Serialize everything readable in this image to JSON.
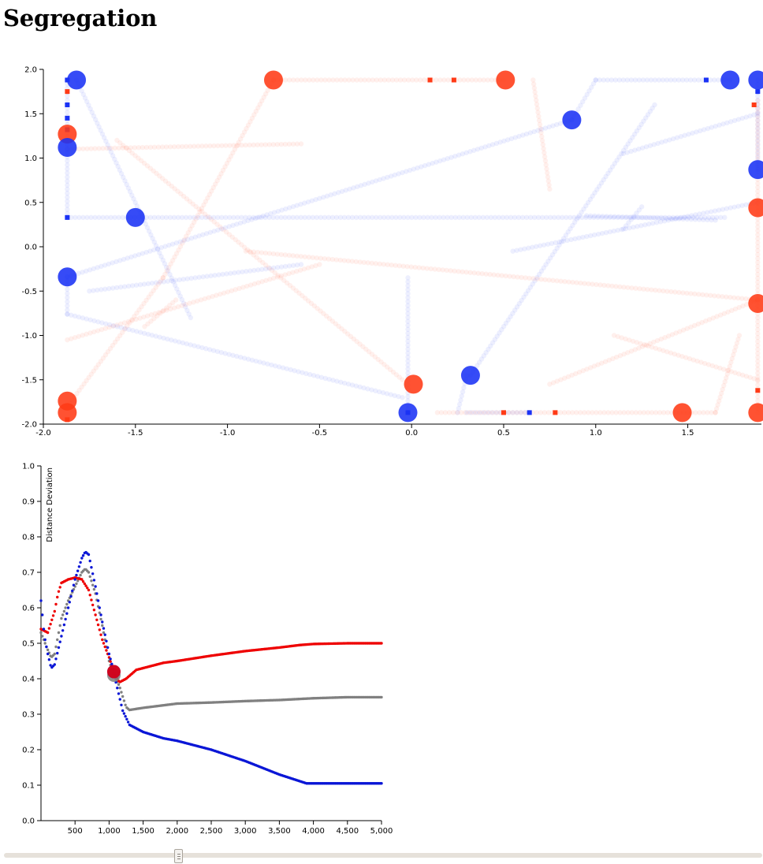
{
  "page": {
    "title": "Segregation"
  },
  "colors": {
    "red": "#ff3a16",
    "blue": "#1a32f5",
    "gray": "#808080",
    "red_line": "#ee0000",
    "blue_line": "#0a16d6"
  },
  "chart_data": [
    {
      "type": "scatter",
      "xlim": [
        -2.0,
        1.9
      ],
      "ylim": [
        -2.0,
        2.0
      ],
      "xticks": [
        "-2.0",
        "-1.5",
        "-1.0",
        "-0.5",
        "0.0",
        "0.5",
        "1.0",
        "1.5"
      ],
      "xtick_values": [
        -2.0,
        -1.5,
        -1.0,
        -0.5,
        0.0,
        0.5,
        1.0,
        1.5
      ],
      "yticks": [
        "-2.0",
        "-1.5",
        "-1.0",
        "-0.5",
        "0.0",
        "0.5",
        "1.0",
        "1.5",
        "2.0"
      ],
      "ytick_values": [
        -2.0,
        -1.5,
        -1.0,
        -0.5,
        0.0,
        0.5,
        1.0,
        1.5,
        2.0
      ],
      "series": [
        {
          "group": "red",
          "points": [
            [
              -1.87,
              1.27
            ],
            [
              -1.87,
              -1.74
            ],
            [
              -1.87,
              -1.87
            ],
            [
              -0.75,
              1.88
            ],
            [
              0.51,
              1.88
            ],
            [
              0.01,
              -1.55
            ],
            [
              1.47,
              -1.87
            ],
            [
              1.88,
              -1.87
            ],
            [
              1.88,
              0.44
            ],
            [
              1.88,
              -0.64
            ]
          ],
          "trails": [
            [
              [
                -0.75,
                1.88
              ],
              [
                -1.35,
                -0.35
              ],
              [
                -1.87,
                -1.8
              ]
            ],
            [
              [
                -0.75,
                1.88
              ],
              [
                0.5,
                1.88
              ]
            ],
            [
              [
                0.66,
                1.88
              ],
              [
                0.75,
                0.65
              ]
            ],
            [
              [
                -1.87,
                1.1
              ],
              [
                -0.6,
                1.16
              ]
            ],
            [
              [
                -1.6,
                1.2
              ],
              [
                -0.05,
                -1.5
              ]
            ],
            [
              [
                -1.87,
                -1.05
              ],
              [
                -0.5,
                -0.2
              ]
            ],
            [
              [
                -0.9,
                -0.05
              ],
              [
                1.88,
                -0.6
              ]
            ],
            [
              [
                1.1,
                -1.0
              ],
              [
                1.88,
                -1.5
              ]
            ],
            [
              [
                0.75,
                -1.55
              ],
              [
                1.88,
                -0.6
              ]
            ],
            [
              [
                1.88,
                1.65
              ],
              [
                1.88,
                -1.87
              ]
            ],
            [
              [
                0.14,
                -1.87
              ],
              [
                1.65,
                -1.87
              ]
            ],
            [
              [
                1.65,
                -1.87
              ],
              [
                1.78,
                -1.0
              ]
            ],
            [
              [
                -1.28,
                -0.6
              ],
              [
                -1.45,
                -0.9
              ]
            ]
          ],
          "markers": [
            [
              0.1,
              1.88
            ],
            [
              0.23,
              1.88
            ],
            [
              -1.87,
              1.75
            ],
            [
              1.86,
              1.6
            ],
            [
              1.88,
              -1.62
            ],
            [
              0.5,
              -1.87
            ],
            [
              0.78,
              -1.87
            ],
            [
              -1.87,
              -1.95
            ]
          ]
        },
        {
          "group": "blue",
          "points": [
            [
              -1.82,
              1.88
            ],
            [
              -1.87,
              1.12
            ],
            [
              -1.5,
              0.33
            ],
            [
              -1.87,
              -0.34
            ],
            [
              0.87,
              1.43
            ],
            [
              0.32,
              -1.45
            ],
            [
              -0.02,
              -1.87
            ],
            [
              1.73,
              1.88
            ],
            [
              1.88,
              1.88
            ],
            [
              1.88,
              0.87
            ]
          ],
          "trails": [
            [
              [
                -1.82,
                1.88
              ],
              [
                -1.2,
                -0.8
              ]
            ],
            [
              [
                -1.87,
                1.88
              ],
              [
                -1.87,
                0.33
              ]
            ],
            [
              [
                -1.87,
                0.33
              ],
              [
                1.7,
                0.33
              ]
            ],
            [
              [
                -1.87,
                -0.34
              ],
              [
                0.87,
                1.43
              ]
            ],
            [
              [
                0.87,
                1.43
              ],
              [
                1.0,
                1.88
              ],
              [
                1.73,
                1.88
              ]
            ],
            [
              [
                0.32,
                -1.45
              ],
              [
                1.32,
                1.6
              ]
            ],
            [
              [
                -1.87,
                -0.76
              ],
              [
                -0.05,
                -1.7
              ]
            ],
            [
              [
                -1.75,
                -0.5
              ],
              [
                -0.6,
                -0.2
              ]
            ],
            [
              [
                -1.87,
                -0.34
              ],
              [
                -1.87,
                -0.76
              ]
            ],
            [
              [
                0.55,
                -0.05
              ],
              [
                1.88,
                0.5
              ]
            ],
            [
              [
                -0.02,
                -0.35
              ],
              [
                -0.02,
                -1.87
              ]
            ],
            [
              [
                1.15,
                1.05
              ],
              [
                1.88,
                1.5
              ]
            ],
            [
              [
                1.88,
                1.88
              ],
              [
                1.88,
                0.87
              ]
            ],
            [
              [
                0.25,
                -1.87
              ],
              [
                0.3,
                -1.45
              ]
            ],
            [
              [
                0.3,
                -1.87
              ],
              [
                0.64,
                -1.87
              ]
            ],
            [
              [
                0.95,
                0.35
              ],
              [
                1.65,
                0.3
              ]
            ],
            [
              [
                1.25,
                0.45
              ],
              [
                1.15,
                0.2
              ]
            ]
          ],
          "markers": [
            [
              -1.87,
              1.88
            ],
            [
              -1.87,
              1.6
            ],
            [
              -1.87,
              1.45
            ],
            [
              -1.87,
              1.32
            ],
            [
              -1.87,
              0.33
            ],
            [
              1.6,
              1.88
            ],
            [
              1.88,
              1.75
            ],
            [
              0.64,
              -1.87
            ],
            [
              -0.02,
              -1.87
            ]
          ]
        }
      ]
    },
    {
      "type": "line",
      "ylabel": "Distance Deviation",
      "xlim": [
        0,
        5000
      ],
      "ylim": [
        0.0,
        1.0
      ],
      "xticks": [
        "500",
        "1,000",
        "1,500",
        "2,000",
        "2,500",
        "3,000",
        "3,500",
        "4,000",
        "4,500",
        "5,000"
      ],
      "xtick_values": [
        500,
        1000,
        1500,
        2000,
        2500,
        3000,
        3500,
        4000,
        4500,
        5000
      ],
      "yticks": [
        "0.0",
        "0.1",
        "0.2",
        "0.3",
        "0.4",
        "0.5",
        "0.6",
        "0.7",
        "0.8",
        "0.9",
        "1.0"
      ],
      "ytick_values": [
        0.0,
        0.1,
        0.2,
        0.3,
        0.4,
        0.5,
        0.6,
        0.7,
        0.8,
        0.9,
        1.0
      ],
      "current_x": 1070,
      "series": [
        {
          "group": "red",
          "x": [
            0,
            100,
            200,
            250,
            300,
            400,
            500,
            600,
            700,
            800,
            900,
            1000,
            1070,
            1150,
            1250,
            1400,
            1600,
            1800,
            2000,
            2500,
            3000,
            3500,
            3800,
            4000,
            4500,
            5000
          ],
          "y": [
            0.54,
            0.53,
            0.59,
            0.64,
            0.67,
            0.68,
            0.685,
            0.68,
            0.65,
            0.58,
            0.51,
            0.46,
            0.42,
            0.39,
            0.4,
            0.425,
            0.435,
            0.445,
            0.45,
            0.465,
            0.478,
            0.488,
            0.495,
            0.498,
            0.5,
            0.5
          ]
        },
        {
          "group": "gray",
          "x": [
            0,
            80,
            150,
            200,
            300,
            400,
            500,
            600,
            650,
            700,
            800,
            900,
            1000,
            1070,
            1150,
            1200,
            1250,
            1300,
            1500,
            2000,
            2500,
            3000,
            3500,
            4000,
            4500,
            5000
          ],
          "y": [
            0.53,
            0.49,
            0.46,
            0.47,
            0.57,
            0.62,
            0.66,
            0.7,
            0.71,
            0.7,
            0.64,
            0.55,
            0.45,
            0.41,
            0.38,
            0.35,
            0.32,
            0.312,
            0.318,
            0.33,
            0.333,
            0.337,
            0.34,
            0.345,
            0.348,
            0.348
          ]
        },
        {
          "group": "blue",
          "x": [
            0,
            50,
            100,
            150,
            200,
            300,
            400,
            500,
            600,
            650,
            700,
            800,
            900,
            1000,
            1070,
            1100,
            1150,
            1200,
            1300,
            1500,
            1800,
            2000,
            2500,
            3000,
            3500,
            3900,
            4000,
            4500,
            5000
          ],
          "y": [
            0.62,
            0.52,
            0.47,
            0.43,
            0.44,
            0.52,
            0.6,
            0.68,
            0.74,
            0.758,
            0.75,
            0.66,
            0.56,
            0.47,
            0.42,
            0.39,
            0.35,
            0.31,
            0.27,
            0.25,
            0.232,
            0.225,
            0.2,
            0.168,
            0.13,
            0.105,
            0.105,
            0.105,
            0.105
          ]
        }
      ]
    }
  ]
}
